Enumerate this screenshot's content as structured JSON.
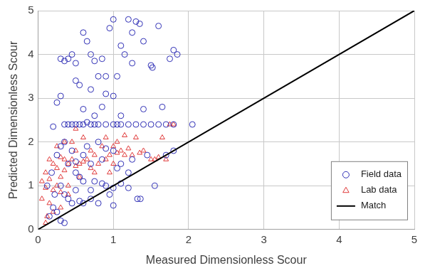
{
  "chart_data": {
    "type": "scatter",
    "x_label": "Measured Dimensionless Scour",
    "y_label": "Predicted Dimensionless Scour",
    "xlim": [
      0,
      5
    ],
    "xticks": [
      0,
      1,
      2,
      3,
      4,
      5
    ],
    "ylim": [
      0,
      5
    ],
    "yticks": [
      0,
      1,
      2,
      3,
      4,
      5
    ],
    "grid": true,
    "legend": "lower right",
    "series": [
      {
        "name": "Field data",
        "color": "#2f2fb5",
        "marker": "circle",
        "values": [
          [
            0.3,
            3.9
          ],
          [
            0.35,
            3.85
          ],
          [
            0.4,
            3.9
          ],
          [
            0.45,
            4.0
          ],
          [
            0.5,
            3.8
          ],
          [
            0.55,
            3.3
          ],
          [
            0.6,
            4.5
          ],
          [
            0.65,
            4.3
          ],
          [
            0.7,
            4.0
          ],
          [
            0.75,
            3.85
          ],
          [
            0.8,
            3.5
          ],
          [
            0.85,
            3.9
          ],
          [
            0.9,
            3.1
          ],
          [
            0.95,
            4.6
          ],
          [
            1.0,
            4.8
          ],
          [
            1.05,
            3.5
          ],
          [
            1.1,
            4.2
          ],
          [
            1.15,
            4.0
          ],
          [
            1.2,
            4.8
          ],
          [
            1.25,
            4.5
          ],
          [
            1.3,
            4.75
          ],
          [
            1.35,
            4.7
          ],
          [
            1.4,
            4.3
          ],
          [
            1.5,
            3.75
          ],
          [
            1.6,
            4.65
          ],
          [
            1.75,
            3.9
          ],
          [
            1.8,
            4.1
          ],
          [
            1.85,
            4.0
          ],
          [
            0.5,
            3.4
          ],
          [
            0.6,
            2.75
          ],
          [
            0.7,
            3.2
          ],
          [
            0.75,
            2.6
          ],
          [
            0.3,
            3.05
          ],
          [
            0.25,
            2.9
          ],
          [
            0.9,
            3.5
          ],
          [
            1.0,
            3.05
          ],
          [
            1.1,
            2.6
          ],
          [
            1.25,
            3.8
          ],
          [
            1.4,
            2.75
          ],
          [
            1.52,
            3.7
          ],
          [
            1.65,
            2.8
          ],
          [
            0.85,
            2.8
          ],
          [
            0.65,
            2.45
          ],
          [
            0.35,
            2.4
          ],
          [
            0.4,
            2.4
          ],
          [
            0.45,
            2.4
          ],
          [
            0.5,
            2.4
          ],
          [
            0.55,
            2.4
          ],
          [
            0.6,
            2.4
          ],
          [
            0.7,
            2.4
          ],
          [
            0.75,
            2.4
          ],
          [
            0.8,
            2.4
          ],
          [
            0.9,
            2.4
          ],
          [
            1.0,
            2.4
          ],
          [
            1.05,
            2.4
          ],
          [
            1.1,
            2.4
          ],
          [
            1.2,
            2.4
          ],
          [
            1.3,
            2.4
          ],
          [
            1.4,
            2.4
          ],
          [
            1.5,
            2.4
          ],
          [
            1.6,
            2.4
          ],
          [
            1.7,
            2.4
          ],
          [
            1.8,
            2.4
          ],
          [
            2.05,
            2.4
          ],
          [
            0.2,
            2.35
          ],
          [
            0.25,
            1.7
          ],
          [
            0.3,
            1.9
          ],
          [
            0.35,
            2.0
          ],
          [
            0.4,
            1.5
          ],
          [
            0.45,
            1.8
          ],
          [
            0.5,
            1.3
          ],
          [
            0.55,
            1.2
          ],
          [
            0.6,
            1.7
          ],
          [
            0.65,
            1.9
          ],
          [
            0.7,
            1.5
          ],
          [
            0.75,
            1.1
          ],
          [
            0.8,
            2.0
          ],
          [
            0.85,
            1.6
          ],
          [
            0.9,
            1.0
          ],
          [
            0.95,
            0.8
          ],
          [
            1.0,
            1.8
          ],
          [
            1.05,
            1.4
          ],
          [
            1.1,
            1.5
          ],
          [
            1.2,
            1.3
          ],
          [
            0.3,
            1.0
          ],
          [
            0.35,
            0.8
          ],
          [
            0.4,
            0.7
          ],
          [
            0.45,
            0.6
          ],
          [
            0.5,
            0.9
          ],
          [
            0.55,
            0.65
          ],
          [
            0.6,
            0.6
          ],
          [
            0.7,
            0.7
          ],
          [
            0.8,
            0.6
          ],
          [
            0.85,
            1.05
          ],
          [
            1.0,
            0.55
          ],
          [
            1.0,
            0.95
          ],
          [
            1.1,
            1.05
          ],
          [
            1.2,
            0.95
          ],
          [
            1.32,
            0.7
          ],
          [
            1.36,
            0.7
          ],
          [
            1.55,
            1.0
          ],
          [
            1.7,
            1.7
          ],
          [
            1.8,
            1.8
          ],
          [
            0.15,
            0.3
          ],
          [
            0.2,
            0.5
          ],
          [
            0.25,
            0.4
          ],
          [
            0.3,
            0.2
          ],
          [
            0.35,
            0.15
          ],
          [
            0.22,
            0.8
          ],
          [
            0.18,
            1.3
          ],
          [
            0.12,
            1.0
          ],
          [
            0.5,
            1.55
          ],
          [
            0.9,
            1.85
          ],
          [
            1.25,
            1.6
          ],
          [
            1.45,
            1.7
          ],
          [
            0.6,
            1.1
          ],
          [
            0.7,
            0.9
          ]
        ]
      },
      {
        "name": "Lab data",
        "color": "#e03a3a",
        "marker": "triangle",
        "values": [
          [
            0.05,
            0.7
          ],
          [
            0.05,
            1.1
          ],
          [
            0.1,
            0.95
          ],
          [
            0.1,
            1.3
          ],
          [
            0.12,
            0.3
          ],
          [
            0.15,
            0.6
          ],
          [
            0.15,
            1.15
          ],
          [
            0.2,
            0.9
          ],
          [
            0.2,
            1.5
          ],
          [
            0.25,
            1.0
          ],
          [
            0.25,
            1.4
          ],
          [
            0.25,
            1.9
          ],
          [
            0.3,
            1.2
          ],
          [
            0.3,
            1.65
          ],
          [
            0.35,
            1.35
          ],
          [
            0.35,
            1.6
          ],
          [
            0.4,
            1.5
          ],
          [
            0.4,
            1.0
          ],
          [
            0.45,
            1.6
          ],
          [
            0.45,
            2.0
          ],
          [
            0.5,
            1.45
          ],
          [
            0.5,
            1.8
          ],
          [
            0.55,
            1.5
          ],
          [
            0.55,
            1.2
          ],
          [
            0.6,
            1.55
          ],
          [
            0.6,
            2.1
          ],
          [
            0.65,
            1.6
          ],
          [
            0.7,
            1.4
          ],
          [
            0.7,
            1.8
          ],
          [
            0.75,
            1.7
          ],
          [
            0.8,
            1.5
          ],
          [
            0.85,
            1.9
          ],
          [
            0.9,
            1.6
          ],
          [
            0.9,
            2.1
          ],
          [
            0.95,
            1.7
          ],
          [
            1.0,
            1.9
          ],
          [
            1.0,
            1.5
          ],
          [
            1.05,
            1.75
          ],
          [
            1.1,
            1.8
          ],
          [
            1.15,
            1.7
          ],
          [
            1.2,
            1.85
          ],
          [
            1.25,
            1.7
          ],
          [
            1.3,
            2.1
          ],
          [
            1.35,
            1.75
          ],
          [
            1.4,
            1.8
          ],
          [
            1.5,
            1.6
          ],
          [
            1.55,
            1.6
          ],
          [
            1.6,
            1.65
          ],
          [
            1.65,
            2.1
          ],
          [
            1.7,
            1.6
          ],
          [
            1.75,
            2.4
          ],
          [
            1.8,
            2.4
          ],
          [
            1.15,
            2.15
          ],
          [
            0.2,
            0.4
          ],
          [
            0.3,
            0.5
          ],
          [
            0.4,
            0.8
          ],
          [
            0.1,
            0.15
          ],
          [
            0.35,
            2.0
          ],
          [
            0.5,
            2.3
          ],
          [
            0.75,
            1.3
          ],
          [
            1.05,
            2.0
          ],
          [
            0.95,
            1.3
          ],
          [
            0.15,
            1.6
          ],
          [
            0.3,
            0.85
          ]
        ]
      },
      {
        "name": "Match",
        "color": "#000000",
        "type": "line",
        "line_style": "solid",
        "values": [
          [
            0,
            0
          ],
          [
            5,
            5
          ]
        ]
      }
    ]
  }
}
